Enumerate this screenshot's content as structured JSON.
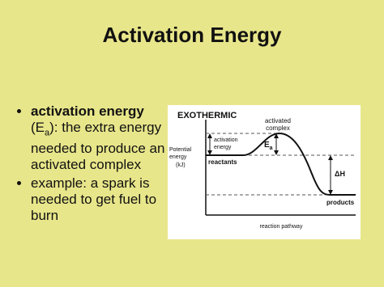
{
  "title": "Activation Energy",
  "bullets": [
    {
      "parts": [
        "activation energy",
        "(E",
        "a",
        "): the extra energy needed to produce an activated complex"
      ]
    },
    {
      "parts": [
        "example: a spark is needed to get fuel to burn"
      ]
    }
  ],
  "diagram": {
    "heading": "EXOTHERMIC",
    "peak_label": [
      "activated",
      "complex"
    ],
    "y_axis_label": [
      "Potential",
      "energy",
      "(kJ)"
    ],
    "activation_label": [
      "activation",
      "energy"
    ],
    "ea_label": [
      "E",
      "a"
    ],
    "reactants": "reactants",
    "delta_h": "ΔH",
    "products": "products",
    "x_axis_label": "reaction pathway"
  }
}
